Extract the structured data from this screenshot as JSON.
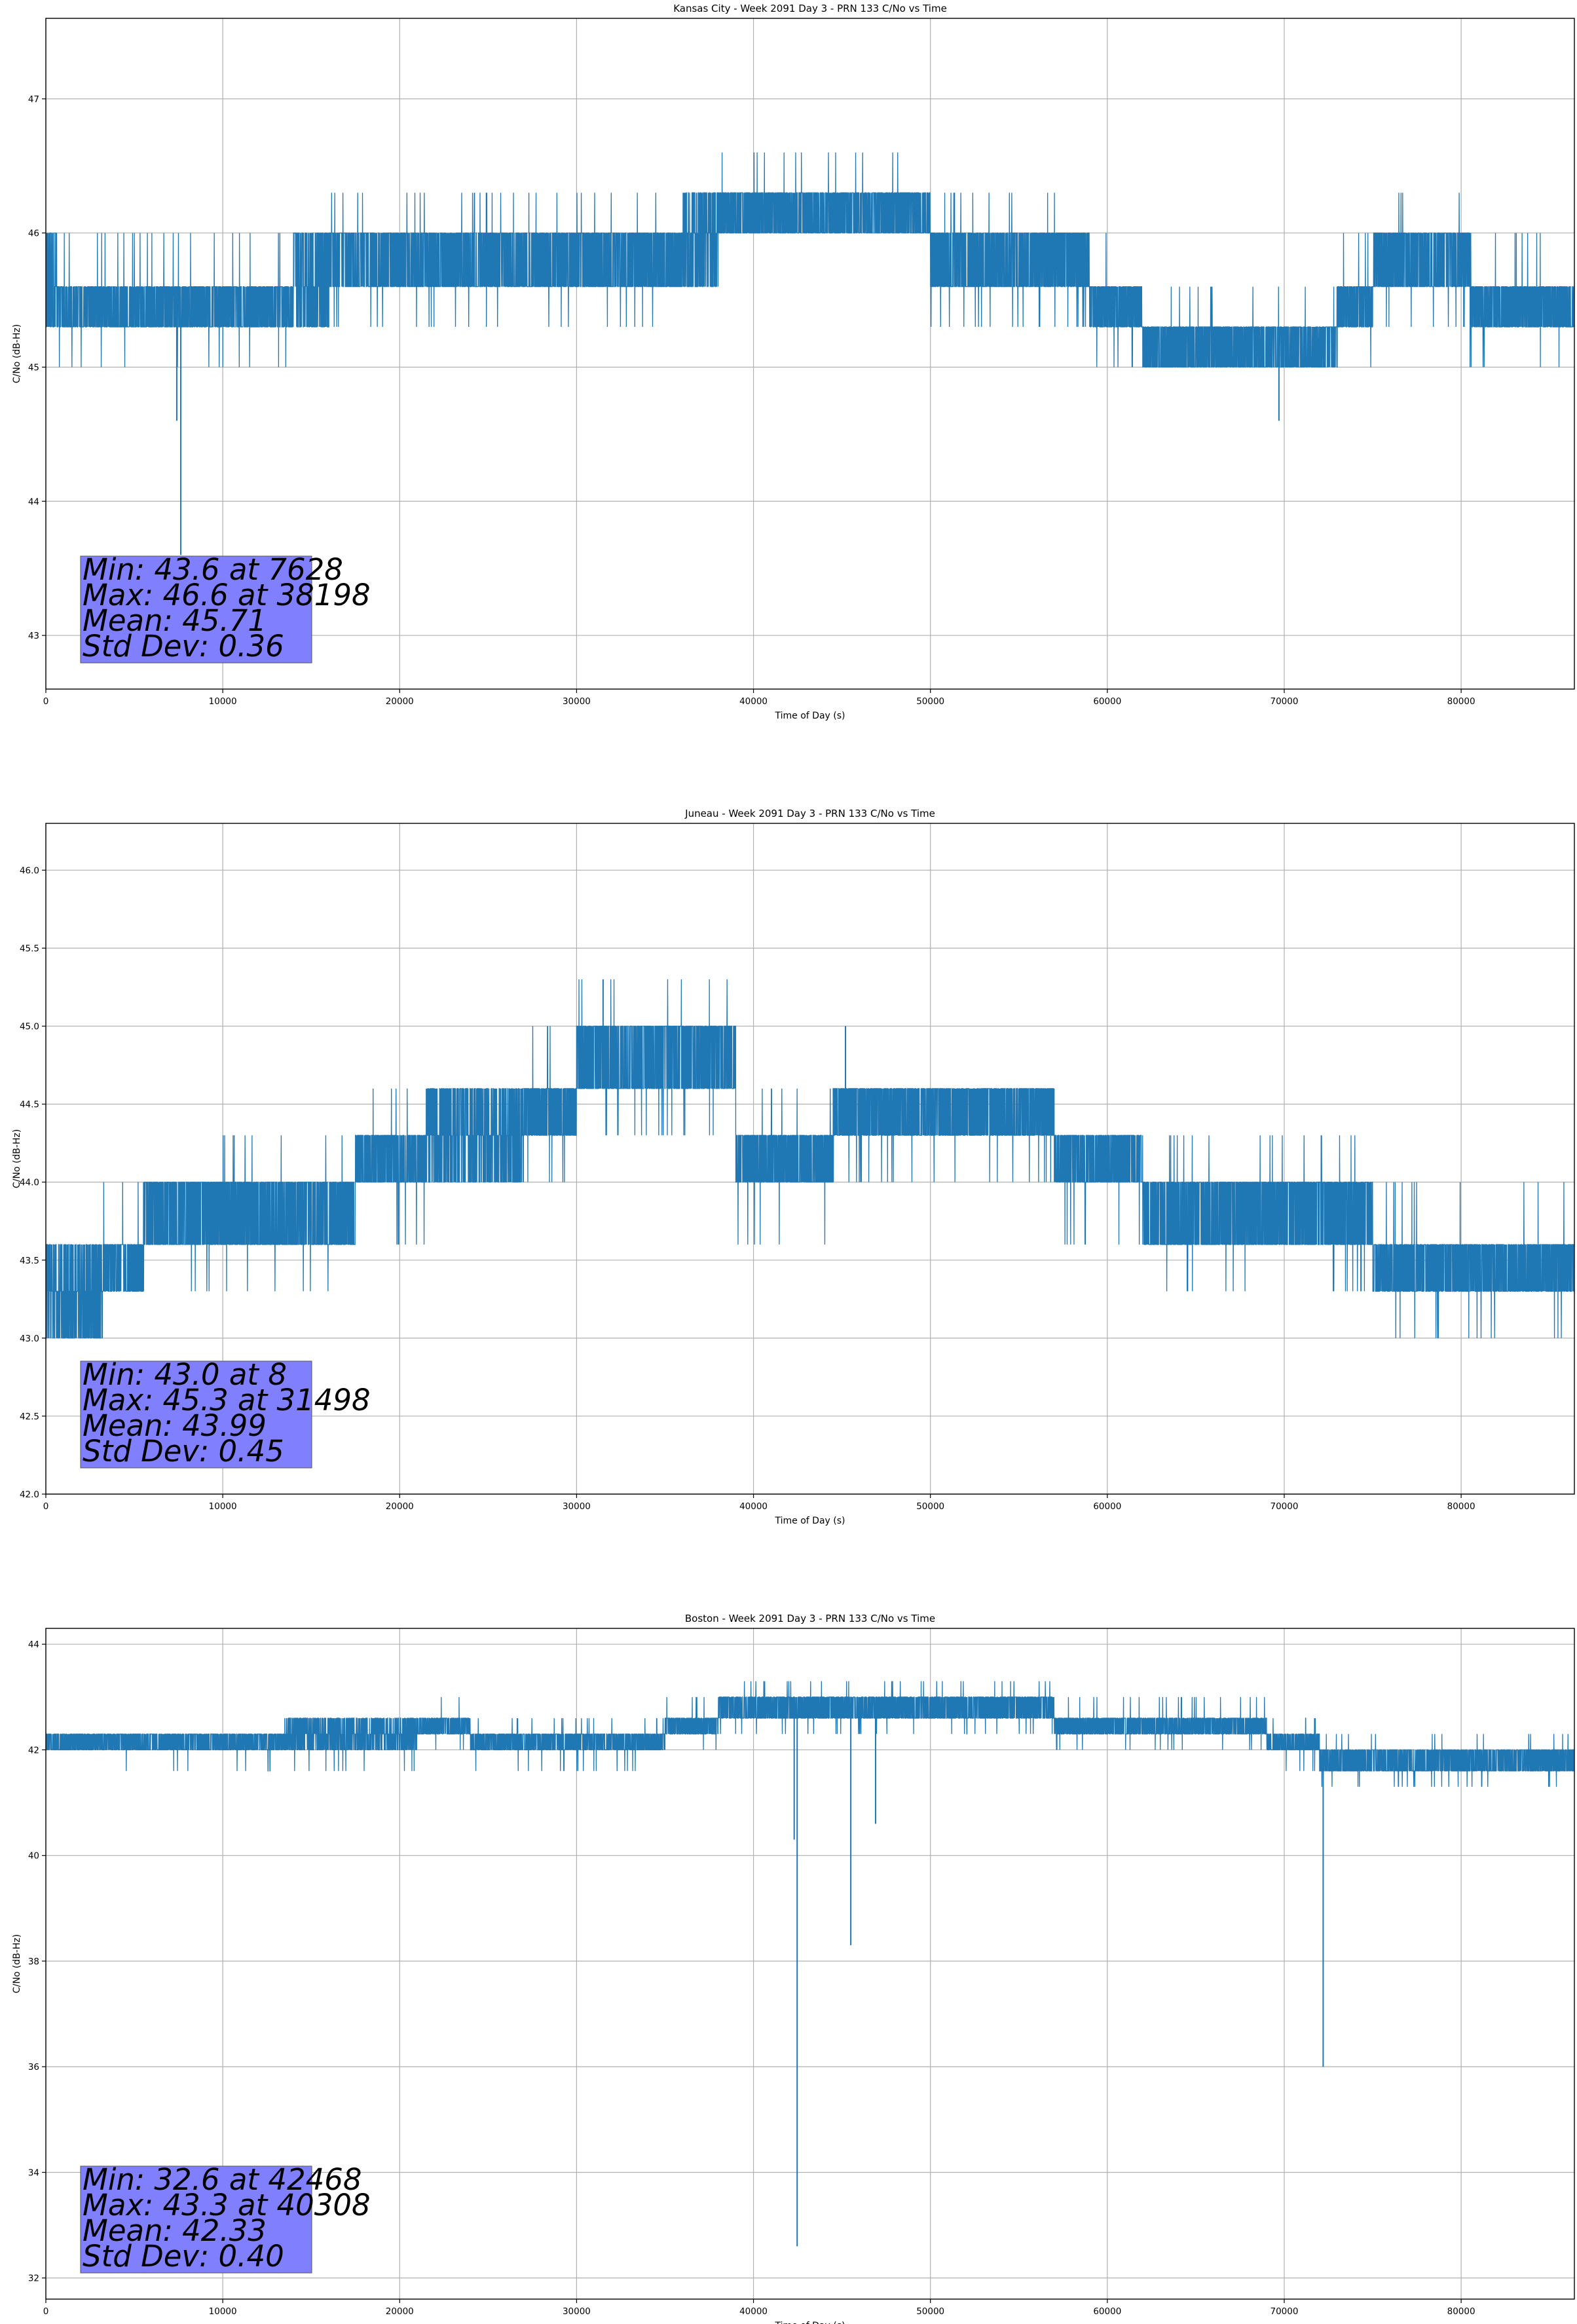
{
  "figure": {
    "background": "#ffffff",
    "line_color": "#1f77b4",
    "grid_color": "#b0b0b0",
    "stats_box_color": "#8080ff"
  },
  "chart_data": [
    {
      "type": "line",
      "title": "Kansas City - Week 2091 Day 3 - PRN 133 C/No vs Time",
      "xlabel": "Time of Day (s)",
      "ylabel": "C/No (dB-Hz)",
      "xlim": [
        0,
        86400
      ],
      "ylim": [
        42.6,
        47.6
      ],
      "xticks": [
        0,
        10000,
        20000,
        30000,
        40000,
        50000,
        60000,
        70000,
        80000
      ],
      "yticks": [
        43,
        44,
        45,
        46,
        47
      ],
      "ytick_labels": [
        "43",
        "44",
        "45",
        "46",
        "47"
      ],
      "grid": true,
      "levels": [
        43.0,
        43.3,
        43.6,
        44.0,
        44.3,
        44.6,
        45.0,
        45.3,
        45.6,
        46.0,
        46.3,
        46.6
      ],
      "segments": [
        {
          "x": [
            0,
            700
          ],
          "lo": 45.3,
          "hi": 46.0,
          "spike_hi": 46.0,
          "spike_lo": 45.3
        },
        {
          "x": [
            700,
            14000
          ],
          "lo": 45.3,
          "hi": 45.6,
          "spike_hi": 46.0,
          "spike_lo": 45.0
        },
        {
          "x": [
            14000,
            16000
          ],
          "lo": 45.3,
          "hi": 46.0,
          "spike_hi": 46.0,
          "spike_lo": 45.3
        },
        {
          "x": [
            16000,
            36000
          ],
          "lo": 45.6,
          "hi": 46.0,
          "spike_hi": 46.3,
          "spike_lo": 45.3
        },
        {
          "x": [
            36000,
            38000
          ],
          "lo": 45.6,
          "hi": 46.3,
          "spike_hi": 46.3,
          "spike_lo": 45.6
        },
        {
          "x": [
            38000,
            45000
          ],
          "lo": 46.0,
          "hi": 46.3,
          "spike_hi": 46.6,
          "spike_lo": 46.0
        },
        {
          "x": [
            45000,
            50000
          ],
          "lo": 46.0,
          "hi": 46.3,
          "spike_hi": 46.6,
          "spike_lo": 46.0
        },
        {
          "x": [
            50000,
            59000
          ],
          "lo": 45.6,
          "hi": 46.0,
          "spike_hi": 46.3,
          "spike_lo": 45.3
        },
        {
          "x": [
            59000,
            62000
          ],
          "lo": 45.3,
          "hi": 45.6,
          "spike_hi": 46.0,
          "spike_lo": 45.0
        },
        {
          "x": [
            62000,
            73000
          ],
          "lo": 45.0,
          "hi": 45.3,
          "spike_hi": 45.6,
          "spike_lo": 45.0
        },
        {
          "x": [
            73000,
            75000
          ],
          "lo": 45.3,
          "hi": 45.6,
          "spike_hi": 46.0,
          "spike_lo": 45.0
        },
        {
          "x": [
            75000,
            80500
          ],
          "lo": 45.6,
          "hi": 46.0,
          "spike_hi": 46.3,
          "spike_lo": 45.3
        },
        {
          "x": [
            80500,
            86400
          ],
          "lo": 45.3,
          "hi": 45.6,
          "spike_hi": 46.0,
          "spike_lo": 45.0
        }
      ],
      "outliers": [
        {
          "x": 7628,
          "y": 43.6
        },
        {
          "x": 7400,
          "y": 44.6
        },
        {
          "x": 69700,
          "y": 44.6
        }
      ],
      "stats": {
        "min_value": 43.6,
        "min_time": 7628,
        "max_value": 46.6,
        "max_time": 38198,
        "mean": 45.71,
        "std_dev": 0.36,
        "lines": [
          "Min: 43.6 at 7628",
          "Max: 46.6 at 38198",
          "Mean: 45.71",
          "Std Dev: 0.36"
        ]
      }
    },
    {
      "type": "line",
      "title": "Juneau - Week 2091 Day 3 - PRN 133 C/No vs Time",
      "xlabel": "Time of Day (s)",
      "ylabel": "C/No (dB-Hz)",
      "xlim": [
        0,
        86400
      ],
      "ylim": [
        42.0,
        46.3
      ],
      "xticks": [
        0,
        10000,
        20000,
        30000,
        40000,
        50000,
        60000,
        70000,
        80000
      ],
      "yticks": [
        42.0,
        42.5,
        43.0,
        43.5,
        44.0,
        44.5,
        45.0,
        45.5,
        46.0
      ],
      "ytick_labels": [
        "42.0",
        "42.5",
        "43.0",
        "43.5",
        "44.0",
        "44.5",
        "45.0",
        "45.5",
        "46.0"
      ],
      "grid": true,
      "levels": [
        43.0,
        43.3,
        43.6,
        44.0,
        44.3,
        44.6,
        45.0,
        45.3
      ],
      "segments": [
        {
          "x": [
            0,
            3200
          ],
          "lo": 43.0,
          "hi": 43.6,
          "spike_hi": 43.6,
          "spike_lo": 43.0
        },
        {
          "x": [
            3200,
            5500
          ],
          "lo": 43.3,
          "hi": 43.6,
          "spike_hi": 44.0,
          "spike_lo": 43.3
        },
        {
          "x": [
            5500,
            10000
          ],
          "lo": 43.6,
          "hi": 44.0,
          "spike_hi": 44.0,
          "spike_lo": 43.3
        },
        {
          "x": [
            10000,
            17500
          ],
          "lo": 43.6,
          "hi": 44.0,
          "spike_hi": 44.3,
          "spike_lo": 43.3
        },
        {
          "x": [
            17500,
            21500
          ],
          "lo": 44.0,
          "hi": 44.3,
          "spike_hi": 44.6,
          "spike_lo": 43.6
        },
        {
          "x": [
            21500,
            27000
          ],
          "lo": 44.0,
          "hi": 44.6,
          "spike_hi": 44.6,
          "spike_lo": 44.0
        },
        {
          "x": [
            27000,
            30000
          ],
          "lo": 44.3,
          "hi": 44.6,
          "spike_hi": 45.0,
          "spike_lo": 44.0
        },
        {
          "x": [
            30000,
            39000
          ],
          "lo": 44.6,
          "hi": 45.0,
          "spike_hi": 45.3,
          "spike_lo": 44.3
        },
        {
          "x": [
            39000,
            44500
          ],
          "lo": 44.0,
          "hi": 44.3,
          "spike_hi": 44.6,
          "spike_lo": 43.6
        },
        {
          "x": [
            44500,
            53000
          ],
          "lo": 44.3,
          "hi": 44.6,
          "spike_hi": 44.6,
          "spike_lo": 44.0
        },
        {
          "x": [
            53000,
            57000
          ],
          "lo": 44.3,
          "hi": 44.6,
          "spike_hi": 44.6,
          "spike_lo": 44.0
        },
        {
          "x": [
            57000,
            62000
          ],
          "lo": 44.0,
          "hi": 44.3,
          "spike_hi": 44.3,
          "spike_lo": 43.6
        },
        {
          "x": [
            62000,
            66000
          ],
          "lo": 43.6,
          "hi": 44.0,
          "spike_hi": 44.3,
          "spike_lo": 43.3
        },
        {
          "x": [
            66000,
            75000
          ],
          "lo": 43.6,
          "hi": 44.0,
          "spike_hi": 44.3,
          "spike_lo": 43.3
        },
        {
          "x": [
            75000,
            80000
          ],
          "lo": 43.3,
          "hi": 43.6,
          "spike_hi": 44.0,
          "spike_lo": 43.0
        },
        {
          "x": [
            80000,
            86400
          ],
          "lo": 43.3,
          "hi": 43.6,
          "spike_hi": 44.0,
          "spike_lo": 43.0
        }
      ],
      "outliers": [
        {
          "x": 8,
          "y": 43.0
        },
        {
          "x": 31498,
          "y": 45.3
        },
        {
          "x": 45200,
          "y": 45.0
        }
      ],
      "stats": {
        "min_value": 43.0,
        "min_time": 8,
        "max_value": 45.3,
        "max_time": 31498,
        "mean": 43.99,
        "std_dev": 0.45,
        "lines": [
          "Min: 43.0 at 8",
          "Max: 45.3 at 31498",
          "Mean: 43.99",
          "Std Dev: 0.45"
        ]
      }
    },
    {
      "type": "line",
      "title": "Boston - Week 2091 Day 3 - PRN 133 C/No vs Time",
      "xlabel": "Time of Day (s)",
      "ylabel": "C/No (dB-Hz)",
      "xlim": [
        0,
        86400
      ],
      "ylim": [
        31.6,
        44.3
      ],
      "xticks": [
        0,
        10000,
        20000,
        30000,
        40000,
        50000,
        60000,
        70000,
        80000
      ],
      "yticks": [
        32,
        34,
        36,
        38,
        40,
        42,
        44
      ],
      "ytick_labels": [
        "32",
        "34",
        "36",
        "38",
        "40",
        "42",
        "44"
      ],
      "grid": true,
      "levels": [
        41.3,
        41.6,
        42.0,
        42.3,
        42.6,
        43.0,
        43.3
      ],
      "segments": [
        {
          "x": [
            0,
            13500
          ],
          "lo": 42.0,
          "hi": 42.3,
          "spike_hi": 42.3,
          "spike_lo": 41.6
        },
        {
          "x": [
            13500,
            21000
          ],
          "lo": 42.0,
          "hi": 42.6,
          "spike_hi": 42.6,
          "spike_lo": 41.6
        },
        {
          "x": [
            21000,
            24000
          ],
          "lo": 42.3,
          "hi": 42.6,
          "spike_hi": 43.0,
          "spike_lo": 42.0
        },
        {
          "x": [
            24000,
            35000
          ],
          "lo": 42.0,
          "hi": 42.3,
          "spike_hi": 42.6,
          "spike_lo": 41.6
        },
        {
          "x": [
            35000,
            38000
          ],
          "lo": 42.3,
          "hi": 42.6,
          "spike_hi": 43.0,
          "spike_lo": 42.0
        },
        {
          "x": [
            38000,
            57000
          ],
          "lo": 42.6,
          "hi": 43.0,
          "spike_hi": 43.3,
          "spike_lo": 42.3
        },
        {
          "x": [
            57000,
            69000
          ],
          "lo": 42.3,
          "hi": 42.6,
          "spike_hi": 43.0,
          "spike_lo": 42.0
        },
        {
          "x": [
            69000,
            72000
          ],
          "lo": 42.0,
          "hi": 42.3,
          "spike_hi": 42.6,
          "spike_lo": 41.6
        },
        {
          "x": [
            72000,
            86400
          ],
          "lo": 41.6,
          "hi": 42.0,
          "spike_hi": 42.3,
          "spike_lo": 41.3
        }
      ],
      "outliers": [
        {
          "x": 42468,
          "y": 32.6
        },
        {
          "x": 45500,
          "y": 38.3
        },
        {
          "x": 46900,
          "y": 40.6
        },
        {
          "x": 72200,
          "y": 36.0
        },
        {
          "x": 42300,
          "y": 40.3
        }
      ],
      "stats": {
        "min_value": 32.6,
        "min_time": 42468,
        "max_value": 43.3,
        "max_time": 40308,
        "mean": 42.33,
        "std_dev": 0.4,
        "lines": [
          "Min: 32.6 at 42468",
          "Max: 43.3 at 40308",
          "Mean: 42.33",
          "Std Dev: 0.40"
        ]
      }
    }
  ]
}
